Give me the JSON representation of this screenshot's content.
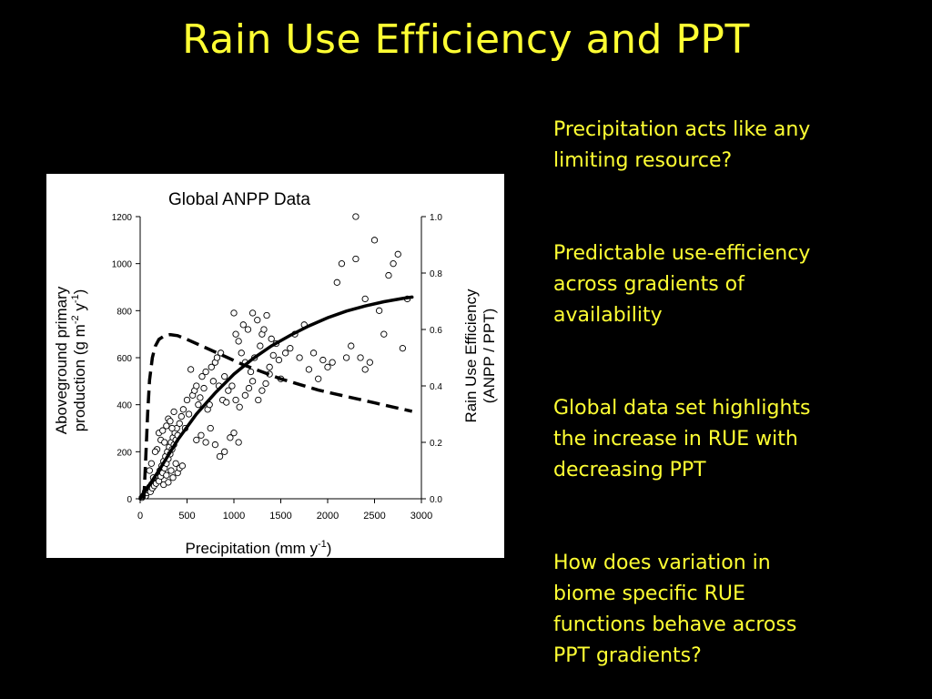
{
  "slide": {
    "title": "Rain Use Efficiency and PPT",
    "text_color": "#FFFF33",
    "background": "#000000"
  },
  "bullets": [
    [
      "Precipitation acts like any",
      "limiting resource?"
    ],
    [
      "Predictable use-efficiency",
      "across gradients of",
      "availability"
    ],
    [
      "Global data set highlights",
      "the increase in RUE with",
      "decreasing PPT"
    ],
    [
      "How does variation in",
      "biome specific RUE",
      "functions behave across",
      "PPT gradients?"
    ]
  ],
  "chart_data": {
    "type": "scatter",
    "title": "Global ANPP Data",
    "xlabel_main": "Precipitation (mm y",
    "xlabel_sup": "-1",
    "xlabel_end": ")",
    "ylabel_line1": "Aboveground primary",
    "ylabel_line2_a": "production (g m",
    "ylabel_line2_sup1": "-2",
    "ylabel_line2_b": " y",
    "ylabel_line2_sup2": "-1",
    "ylabel_line2_c": ")",
    "y2label_line1": "Rain Use Efficiency",
    "y2label_line2": "(ANPP / PPT)",
    "xlim": [
      0,
      3000
    ],
    "ylim": [
      0,
      1200
    ],
    "y2lim": [
      0,
      1.0
    ],
    "x_ticks": [
      "0",
      "500",
      "1000",
      "1500",
      "2000",
      "2500",
      "3000"
    ],
    "y_ticks": [
      "0",
      "200",
      "400",
      "600",
      "800",
      "1000",
      "1200"
    ],
    "y2_ticks": [
      "0.0",
      "0.2",
      "0.4",
      "0.6",
      "0.8",
      "1.0"
    ],
    "grid": false,
    "points": [
      [
        20,
        5
      ],
      [
        30,
        10
      ],
      [
        40,
        15
      ],
      [
        50,
        20
      ],
      [
        55,
        30
      ],
      [
        60,
        12
      ],
      [
        70,
        25
      ],
      [
        80,
        40
      ],
      [
        90,
        35
      ],
      [
        100,
        50
      ],
      [
        110,
        30
      ],
      [
        120,
        60
      ],
      [
        130,
        45
      ],
      [
        140,
        70
      ],
      [
        150,
        55
      ],
      [
        160,
        80
      ],
      [
        170,
        65
      ],
      [
        180,
        90
      ],
      [
        190,
        100
      ],
      [
        200,
        75
      ],
      [
        210,
        120
      ],
      [
        220,
        95
      ],
      [
        230,
        140
      ],
      [
        240,
        110
      ],
      [
        250,
        160
      ],
      [
        260,
        130
      ],
      [
        270,
        180
      ],
      [
        280,
        150
      ],
      [
        290,
        200
      ],
      [
        300,
        170
      ],
      [
        310,
        220
      ],
      [
        320,
        190
      ],
      [
        330,
        240
      ],
      [
        340,
        210
      ],
      [
        350,
        260
      ],
      [
        360,
        230
      ],
      [
        370,
        280
      ],
      [
        380,
        250
      ],
      [
        390,
        300
      ],
      [
        400,
        270
      ],
      [
        180,
        210
      ],
      [
        200,
        280
      ],
      [
        220,
        250
      ],
      [
        240,
        290
      ],
      [
        260,
        240
      ],
      [
        280,
        310
      ],
      [
        300,
        340
      ],
      [
        320,
        330
      ],
      [
        340,
        300
      ],
      [
        360,
        370
      ],
      [
        250,
        60
      ],
      [
        300,
        70
      ],
      [
        350,
        90
      ],
      [
        400,
        110
      ],
      [
        420,
        130
      ],
      [
        450,
        140
      ],
      [
        280,
        100
      ],
      [
        330,
        120
      ],
      [
        380,
        150
      ],
      [
        100,
        120
      ],
      [
        120,
        150
      ],
      [
        140,
        90
      ],
      [
        160,
        200
      ],
      [
        420,
        320
      ],
      [
        440,
        350
      ],
      [
        460,
        380
      ],
      [
        480,
        300
      ],
      [
        500,
        420
      ],
      [
        520,
        360
      ],
      [
        540,
        550
      ],
      [
        560,
        440
      ],
      [
        580,
        460
      ],
      [
        600,
        480
      ],
      [
        620,
        400
      ],
      [
        640,
        430
      ],
      [
        660,
        520
      ],
      [
        680,
        470
      ],
      [
        700,
        540
      ],
      [
        720,
        380
      ],
      [
        740,
        400
      ],
      [
        760,
        560
      ],
      [
        780,
        500
      ],
      [
        800,
        580
      ],
      [
        820,
        600
      ],
      [
        840,
        480
      ],
      [
        860,
        620
      ],
      [
        880,
        420
      ],
      [
        900,
        520
      ],
      [
        920,
        410
      ],
      [
        940,
        460
      ],
      [
        600,
        250
      ],
      [
        650,
        270
      ],
      [
        700,
        240
      ],
      [
        750,
        300
      ],
      [
        800,
        230
      ],
      [
        850,
        180
      ],
      [
        900,
        200
      ],
      [
        960,
        260
      ],
      [
        1000,
        280
      ],
      [
        1050,
        240
      ],
      [
        1000,
        790
      ],
      [
        1050,
        670
      ],
      [
        1100,
        740
      ],
      [
        1150,
        720
      ],
      [
        1200,
        790
      ],
      [
        1250,
        760
      ],
      [
        1300,
        700
      ],
      [
        1350,
        780
      ],
      [
        1400,
        680
      ],
      [
        1450,
        660
      ],
      [
        1020,
        700
      ],
      [
        1080,
        620
      ],
      [
        1120,
        580
      ],
      [
        1180,
        540
      ],
      [
        1220,
        600
      ],
      [
        1280,
        650
      ],
      [
        1320,
        720
      ],
      [
        1380,
        560
      ],
      [
        1420,
        610
      ],
      [
        1480,
        590
      ],
      [
        980,
        480
      ],
      [
        1020,
        420
      ],
      [
        1060,
        390
      ],
      [
        1120,
        440
      ],
      [
        1160,
        470
      ],
      [
        1200,
        500
      ],
      [
        1260,
        420
      ],
      [
        1300,
        460
      ],
      [
        1340,
        490
      ],
      [
        1380,
        530
      ],
      [
        1500,
        510
      ],
      [
        1550,
        620
      ],
      [
        1600,
        640
      ],
      [
        1650,
        700
      ],
      [
        1700,
        600
      ],
      [
        1750,
        740
      ],
      [
        1800,
        550
      ],
      [
        1850,
        620
      ],
      [
        1900,
        510
      ],
      [
        1950,
        590
      ],
      [
        2000,
        560
      ],
      [
        2050,
        580
      ],
      [
        2100,
        920
      ],
      [
        2150,
        1000
      ],
      [
        2200,
        600
      ],
      [
        2250,
        650
      ],
      [
        2300,
        1020
      ],
      [
        2350,
        600
      ],
      [
        2400,
        550
      ],
      [
        2450,
        580
      ],
      [
        2500,
        1100
      ],
      [
        2550,
        800
      ],
      [
        2600,
        700
      ],
      [
        2650,
        950
      ],
      [
        2700,
        1000
      ],
      [
        2750,
        1040
      ],
      [
        2800,
        640
      ],
      [
        2850,
        850
      ],
      [
        2300,
        1200
      ],
      [
        2400,
        850
      ]
    ],
    "solid_curve": [
      [
        0,
        0
      ],
      [
        200,
        120
      ],
      [
        400,
        250
      ],
      [
        600,
        360
      ],
      [
        800,
        450
      ],
      [
        1000,
        530
      ],
      [
        1200,
        595
      ],
      [
        1400,
        650
      ],
      [
        1600,
        695
      ],
      [
        1800,
        735
      ],
      [
        2000,
        770
      ],
      [
        2200,
        798
      ],
      [
        2400,
        820
      ],
      [
        2600,
        838
      ],
      [
        2800,
        852
      ],
      [
        2900,
        858
      ]
    ],
    "dashed_curve_rue": [
      [
        40,
        0.0
      ],
      [
        60,
        0.15
      ],
      [
        80,
        0.3
      ],
      [
        100,
        0.42
      ],
      [
        130,
        0.5
      ],
      [
        160,
        0.54
      ],
      [
        200,
        0.565
      ],
      [
        260,
        0.578
      ],
      [
        320,
        0.582
      ],
      [
        400,
        0.578
      ],
      [
        500,
        0.565
      ],
      [
        700,
        0.535
      ],
      [
        900,
        0.505
      ],
      [
        1100,
        0.475
      ],
      [
        1300,
        0.45
      ],
      [
        1500,
        0.425
      ],
      [
        1700,
        0.405
      ],
      [
        1900,
        0.385
      ],
      [
        2100,
        0.37
      ],
      [
        2300,
        0.355
      ],
      [
        2500,
        0.34
      ],
      [
        2700,
        0.325
      ],
      [
        2900,
        0.31
      ]
    ]
  }
}
